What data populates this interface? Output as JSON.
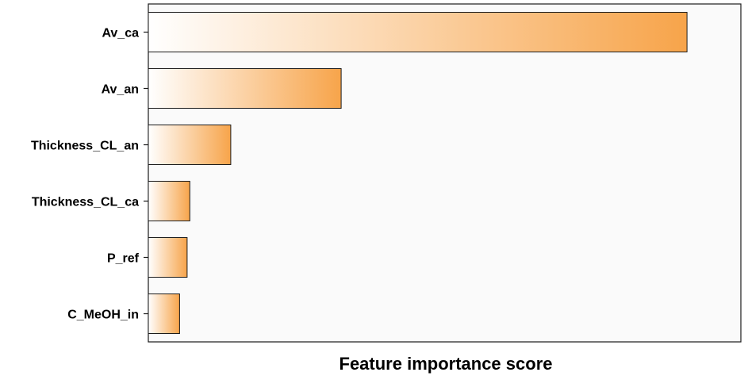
{
  "chart_data": {
    "type": "bar",
    "orientation": "horizontal",
    "title": "",
    "xlabel": "Feature importance score",
    "ylabel": "",
    "categories": [
      "Av_ca",
      "Av_an",
      "Thickness_CL_an",
      "Thickness_CL_ca",
      "P_ref",
      "C_MeOH_in"
    ],
    "values": [
      1.0,
      0.358,
      0.153,
      0.077,
      0.072,
      0.058
    ],
    "xlim": [
      0,
      1.1
    ],
    "x_ticks_shown": false,
    "grid": false,
    "legend": "none",
    "colors": {
      "bar_start": "#ffffff",
      "bar_end": "#f7a44a",
      "bar_border": "#1a1a1a",
      "plot_background": "#fafafa",
      "frame": "#1a1a1a"
    }
  }
}
